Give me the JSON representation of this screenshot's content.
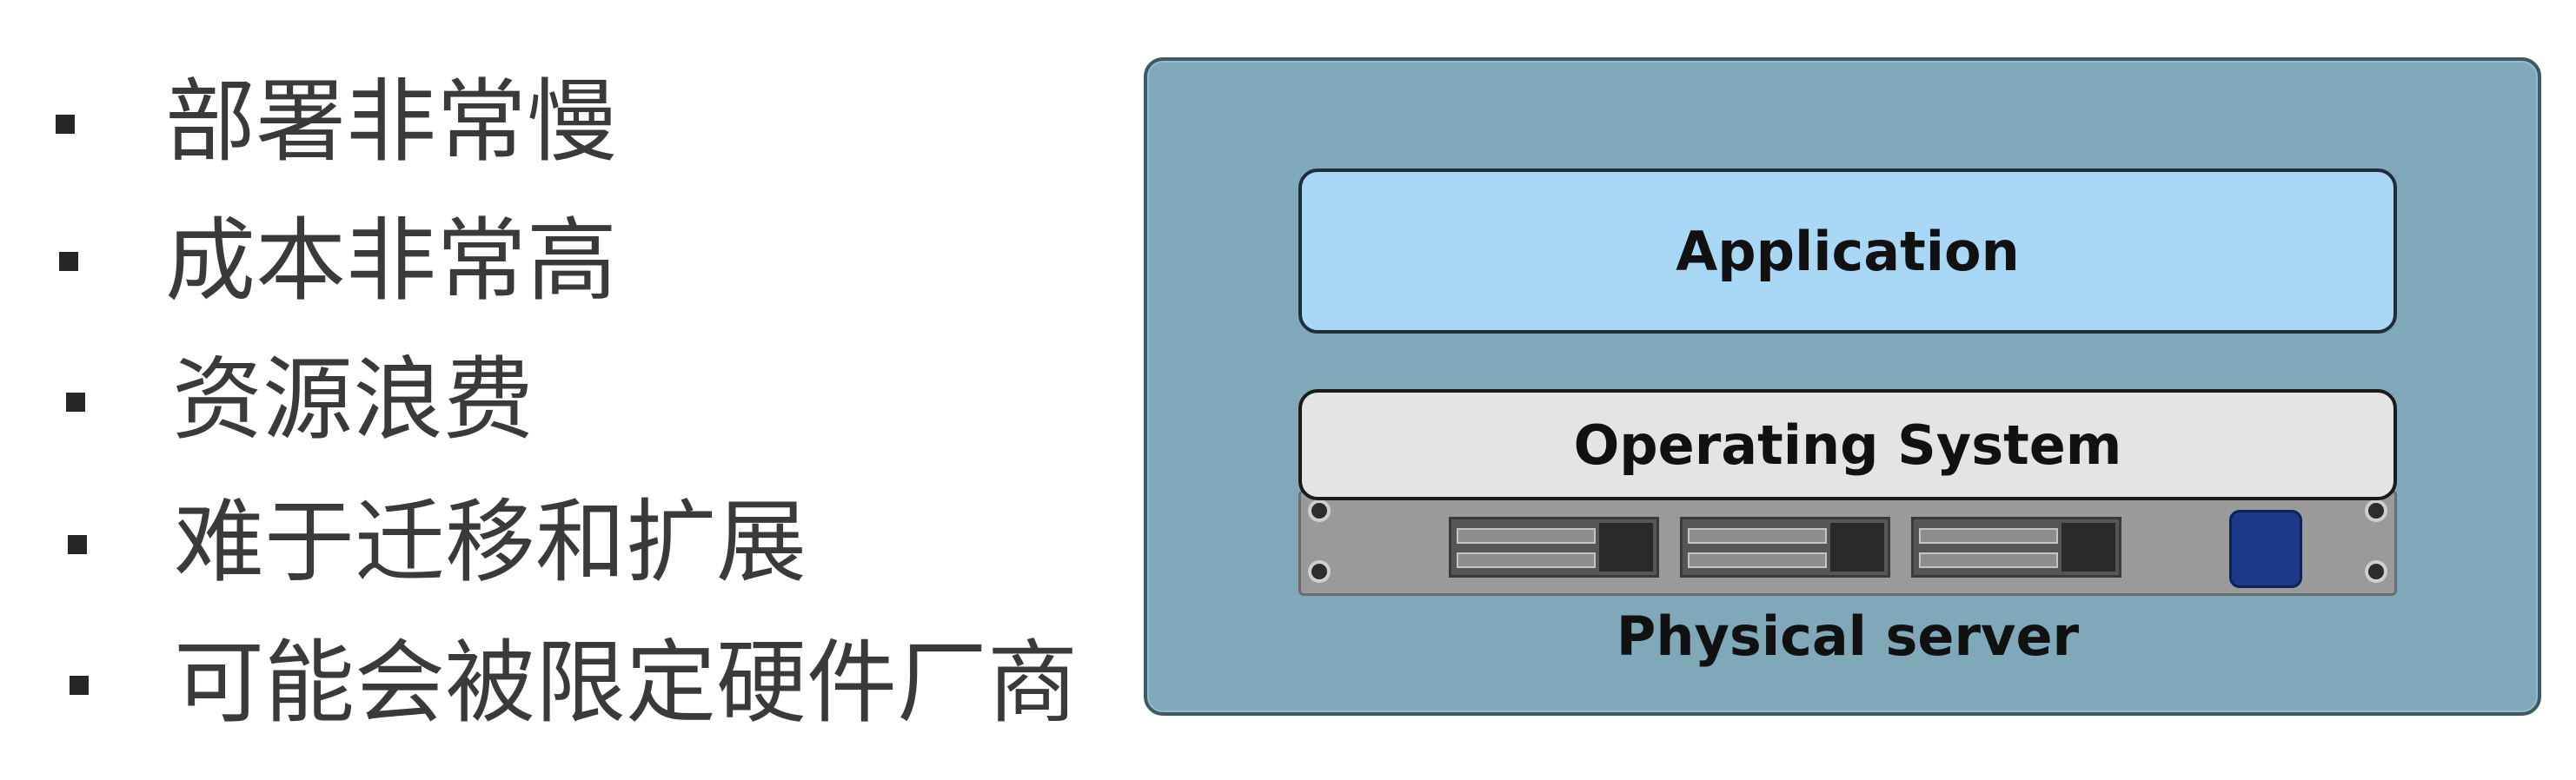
{
  "bullets": [
    "部署非常慢",
    "成本非常高",
    "资源浪费",
    "难于迁移和扩展",
    "可能会被限定硬件厂商"
  ],
  "diagram": {
    "application_label": "Application",
    "os_label": "Operating System",
    "server_label": "Physical server"
  },
  "colors": {
    "panel_background": "#7fa8b8",
    "application_fill": "#a9d7f6",
    "os_fill": "#e4e4e4",
    "server_fill": "#9a9a9a",
    "power_button": "#1c3a8a",
    "bullet_text": "#3a3a3a"
  }
}
